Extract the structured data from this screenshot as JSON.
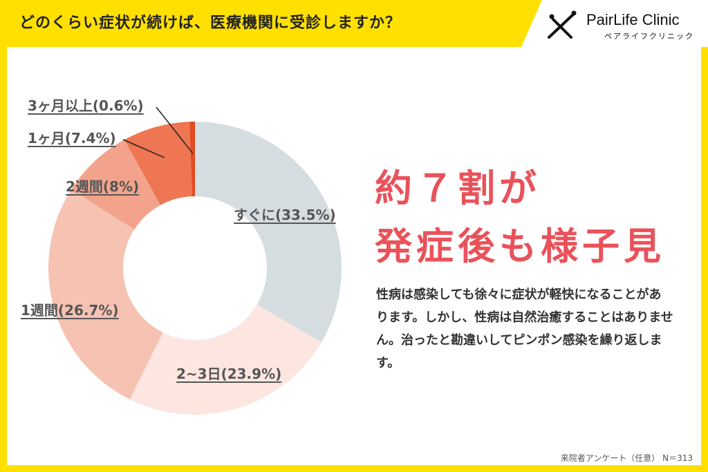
{
  "header": {
    "title": "どのくらい症状が続けば、医療機関に受診しますか？"
  },
  "logo": {
    "name": "PairLife Clinic",
    "sub": "ペアライフクリニック"
  },
  "headline": {
    "line1": "約７割が",
    "line2": "発症後も様子見"
  },
  "body": {
    "text": "性病は感染しても徐々に症状が軽快になることがあります。しかし、性病は自然治癒することはありません。治ったと勘違いしてピンポン感染を繰り返します。"
  },
  "footnote": "来院者アンケート（任意） N＝313",
  "colors": {
    "background": "#FFE000",
    "accent": "#E9525A"
  },
  "chart_data": {
    "type": "pie",
    "title": "どのくらい症状が続けば、医療機関に受診しますか？",
    "categories": [
      "すぐに",
      "2~3日",
      "1週間",
      "2週間",
      "1ヶ月",
      "3ヶ月以上"
    ],
    "values": [
      33.5,
      23.9,
      26.7,
      8,
      7.4,
      0.6
    ],
    "labels": [
      "すぐに(33.5%)",
      "2~3日(23.9%)",
      "1週間(26.7%)",
      "2週間(8%)",
      "1ヶ月(7.4%)",
      "3ヶ月以上(0.6%)"
    ],
    "colors": [
      "#D5DDE0",
      "#FCE6DF",
      "#F6C2B1",
      "#F3A38B",
      "#EE7652",
      "#E34A1F"
    ],
    "donut": true
  }
}
